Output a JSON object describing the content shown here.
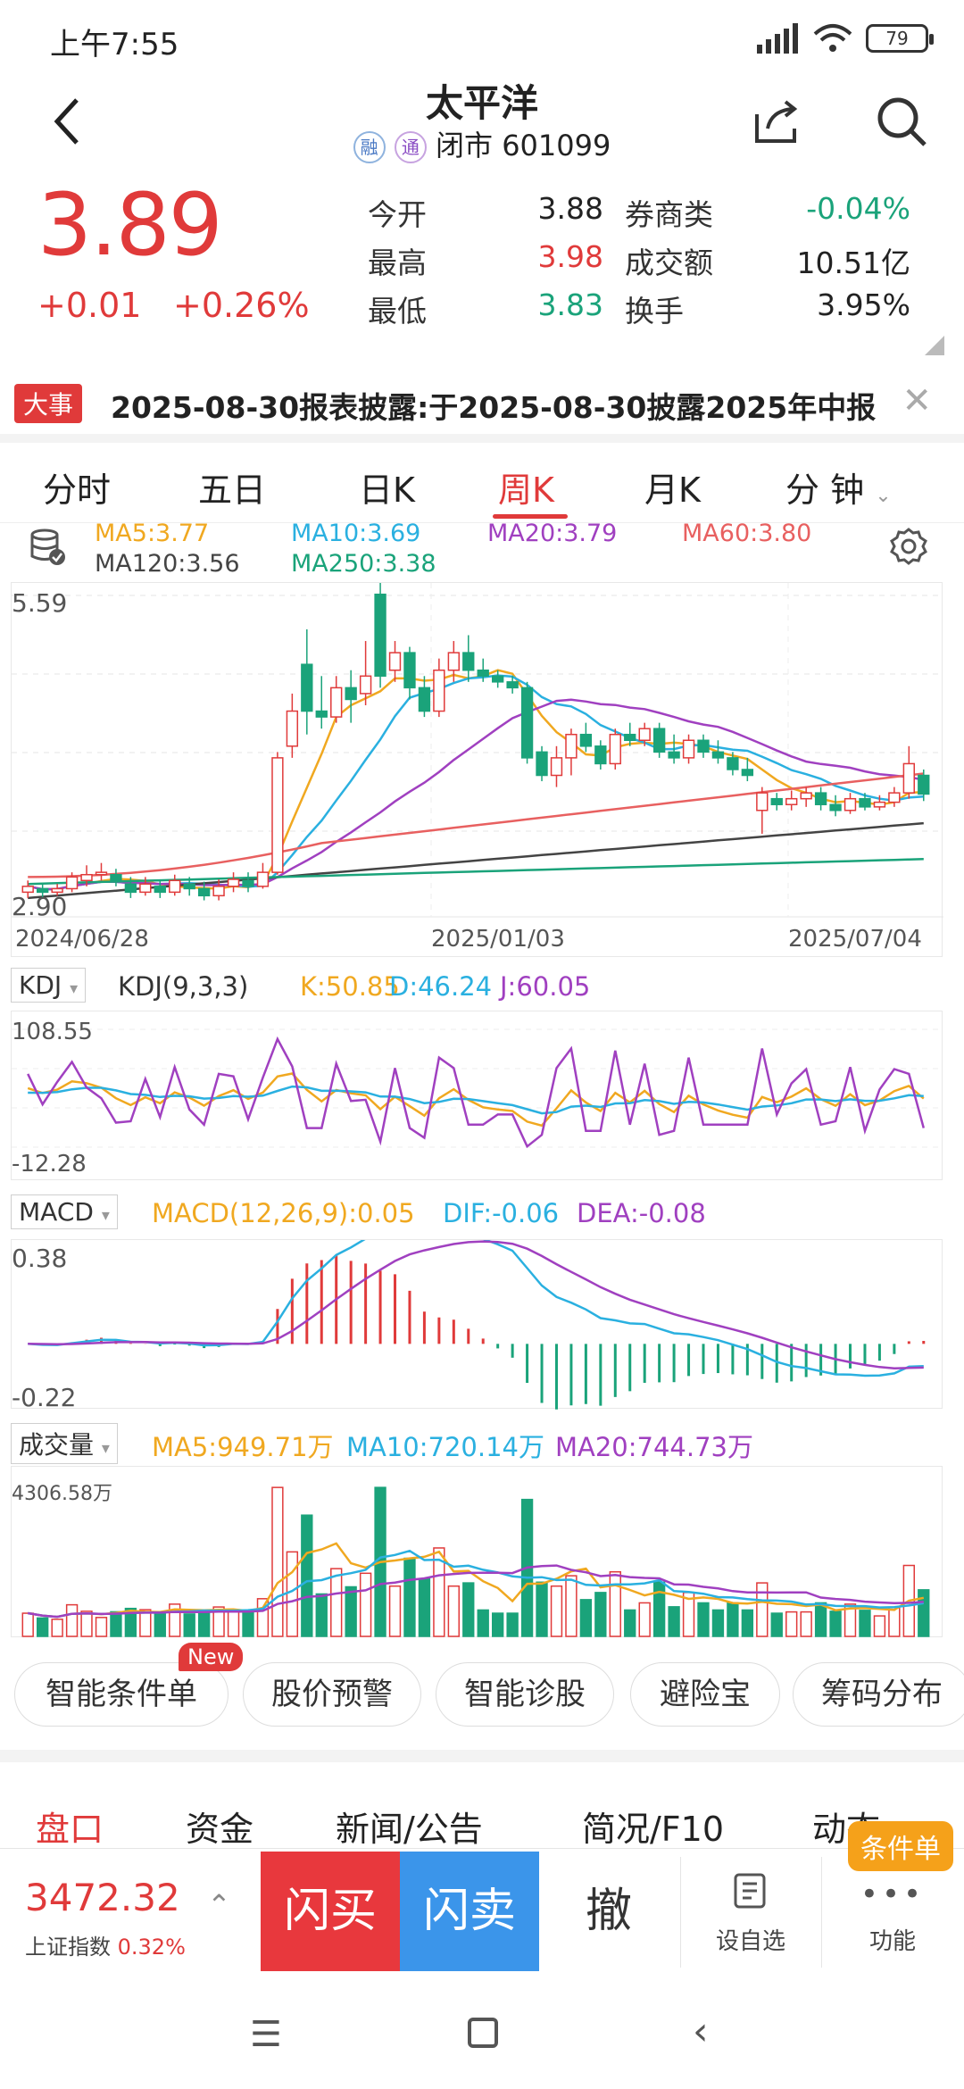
{
  "status_bar": {
    "time": "上午7:55",
    "battery": "79"
  },
  "header": {
    "title": "太平洋",
    "badge1": "融",
    "badge2": "通",
    "status": "闭市",
    "code": "601099"
  },
  "price": {
    "last": "3.89",
    "change": "+0.01",
    "change_pct": "+0.26%"
  },
  "quotes": [
    {
      "label": "今开",
      "value": "3.88",
      "color": "#222222"
    },
    {
      "label": "券商类",
      "value": "-0.04%",
      "color": "#1aa37a"
    },
    {
      "label": "最高",
      "value": "3.98",
      "color": "#e03a3a"
    },
    {
      "label": "成交额",
      "value": "10.51亿",
      "color": "#222222"
    },
    {
      "label": "最低",
      "value": "3.83",
      "color": "#1aa37a"
    },
    {
      "label": "换手",
      "value": "3.95%",
      "color": "#222222"
    }
  ],
  "event": {
    "tag": "大事",
    "text": "2025-08-30报表披露:于2025-08-30披露2025年中报"
  },
  "period_tabs": [
    "分时",
    "五日",
    "日K",
    "周K",
    "月K",
    "分 钟"
  ],
  "active_tab": "周K",
  "ma": {
    "ma5": "MA5:3.77",
    "ma10": "MA10:3.69",
    "ma20": "MA20:3.79",
    "ma60": "MA60:3.80",
    "ma120": "MA120:3.56",
    "ma250": "MA250:3.38"
  },
  "kline_axis": {
    "top": "5.59",
    "bottom": "2.90",
    "dates": [
      "2024/06/28",
      "2025/01/03",
      "2025/07/04"
    ]
  },
  "kdj": {
    "selector": "KDJ",
    "name": "KDJ(9,3,3)",
    "k": "K:50.85",
    "d": "D:46.24",
    "j": "J:60.05",
    "top": "108.55",
    "bottom": "-12.28"
  },
  "macd": {
    "selector": "MACD",
    "name": "MACD(12,26,9):0.05",
    "dif": "DIF:-0.06",
    "dea": "DEA:-0.08",
    "top": "0.38",
    "bottom": "-0.22"
  },
  "volume": {
    "selector": "成交量",
    "ma5": "MA5:949.71万",
    "ma10": "MA10:720.14万",
    "ma20": "MA20:744.73万",
    "top": "4306.58万"
  },
  "tools": [
    "智能条件单",
    "股价预警",
    "智能诊股",
    "避险宝",
    "筹码分布"
  ],
  "tools_new": "New",
  "section_tabs": [
    "盘口",
    "资金",
    "新闻/公告",
    "简况/F10",
    "动态"
  ],
  "bottom": {
    "index_value": "3472.32",
    "index_name": "上证指数",
    "index_pct": "0.32%",
    "buy": "闪买",
    "sell": "闪卖",
    "cancel": "撤",
    "watch": "设自选",
    "more": "功能",
    "cond_badge": "条件单"
  },
  "colors": {
    "up": "#e03a3a",
    "down": "#1aa37a",
    "ma5": "#f0a820",
    "ma10": "#2ab0e0",
    "ma20": "#a040c0",
    "ma60": "#e86060",
    "ma120": "#444444",
    "ma250": "#1aa37a"
  },
  "chart_data": [
    {
      "type": "candlestick",
      "title": "周K",
      "ylim": [
        2.9,
        5.59
      ],
      "x_ticks": [
        "2024/06/28",
        "2025/01/03",
        "2025/07/04"
      ],
      "series": [
        {
          "name": "MA5",
          "value": 3.77
        },
        {
          "name": "MA10",
          "value": 3.69
        },
        {
          "name": "MA20",
          "value": 3.79
        },
        {
          "name": "MA60",
          "value": 3.8
        },
        {
          "name": "MA120",
          "value": 3.56
        },
        {
          "name": "MA250",
          "value": 3.38
        }
      ],
      "candles": [
        [
          3.05,
          3.1,
          3.15,
          3.0
        ],
        [
          3.08,
          3.05,
          3.12,
          3.0
        ],
        [
          3.05,
          3.08,
          3.12,
          3.02
        ],
        [
          3.08,
          3.18,
          3.22,
          3.05
        ],
        [
          3.15,
          3.2,
          3.28,
          3.1
        ],
        [
          3.2,
          3.22,
          3.3,
          3.15
        ],
        [
          3.2,
          3.14,
          3.25,
          3.1
        ],
        [
          3.12,
          3.05,
          3.18,
          3.0
        ],
        [
          3.05,
          3.12,
          3.18,
          3.02
        ],
        [
          3.1,
          3.05,
          3.16,
          3.0
        ],
        [
          3.05,
          3.15,
          3.2,
          3.02
        ],
        [
          3.12,
          3.08,
          3.18,
          3.02
        ],
        [
          3.08,
          3.02,
          3.14,
          2.98
        ],
        [
          3.02,
          3.1,
          3.16,
          2.98
        ],
        [
          3.1,
          3.16,
          3.22,
          3.05
        ],
        [
          3.15,
          3.1,
          3.22,
          3.05
        ],
        [
          3.1,
          3.22,
          3.3,
          3.08
        ],
        [
          3.22,
          4.2,
          4.25,
          3.2
        ],
        [
          4.3,
          4.6,
          4.75,
          4.2
        ],
        [
          5.0,
          4.6,
          5.3,
          4.4
        ],
        [
          4.6,
          4.55,
          4.9,
          4.45
        ],
        [
          4.55,
          4.8,
          4.9,
          4.5
        ],
        [
          4.8,
          4.7,
          4.95,
          4.5
        ],
        [
          4.75,
          4.9,
          5.2,
          4.65
        ],
        [
          5.6,
          4.9,
          5.7,
          4.8
        ],
        [
          4.95,
          5.1,
          5.2,
          4.85
        ],
        [
          5.1,
          4.8,
          5.15,
          4.7
        ],
        [
          4.8,
          4.6,
          4.9,
          4.55
        ],
        [
          4.6,
          4.95,
          5.05,
          4.55
        ],
        [
          4.95,
          5.1,
          5.2,
          4.85
        ],
        [
          5.1,
          4.95,
          5.25,
          4.85
        ],
        [
          4.95,
          4.9,
          5.05,
          4.85
        ],
        [
          4.9,
          4.85,
          4.95,
          4.8
        ],
        [
          4.85,
          4.8,
          4.9,
          4.75
        ],
        [
          4.8,
          4.2,
          4.85,
          4.15
        ],
        [
          4.25,
          4.05,
          4.3,
          4.0
        ],
        [
          4.05,
          4.2,
          4.3,
          3.95
        ],
        [
          4.2,
          4.4,
          4.45,
          4.05
        ],
        [
          4.4,
          4.3,
          4.5,
          4.25
        ],
        [
          4.3,
          4.15,
          4.35,
          4.1
        ],
        [
          4.15,
          4.4,
          4.45,
          4.1
        ],
        [
          4.4,
          4.35,
          4.5,
          4.3
        ],
        [
          4.35,
          4.45,
          4.5,
          4.3
        ],
        [
          4.45,
          4.25,
          4.5,
          4.2
        ],
        [
          4.25,
          4.2,
          4.4,
          4.15
        ],
        [
          4.2,
          4.35,
          4.4,
          4.15
        ],
        [
          4.35,
          4.25,
          4.4,
          4.2
        ],
        [
          4.25,
          4.2,
          4.35,
          4.15
        ],
        [
          4.2,
          4.1,
          4.25,
          4.05
        ],
        [
          4.1,
          4.05,
          4.2,
          4.0
        ],
        [
          3.75,
          3.9,
          3.95,
          3.55
        ],
        [
          3.85,
          3.8,
          3.9,
          3.75
        ],
        [
          3.8,
          3.85,
          3.92,
          3.75
        ],
        [
          3.85,
          3.9,
          3.95,
          3.78
        ],
        [
          3.9,
          3.8,
          3.95,
          3.75
        ],
        [
          3.8,
          3.75,
          3.88,
          3.7
        ],
        [
          3.75,
          3.85,
          3.9,
          3.72
        ],
        [
          3.85,
          3.78,
          3.9,
          3.75
        ],
        [
          3.78,
          3.82,
          3.88,
          3.75
        ],
        [
          3.82,
          3.9,
          3.95,
          3.78
        ],
        [
          3.9,
          4.15,
          4.3,
          3.85
        ],
        [
          4.05,
          3.89,
          4.1,
          3.83
        ]
      ]
    },
    {
      "type": "line",
      "title": "KDJ(9,3,3)",
      "ylim": [
        -12.28,
        108.55
      ],
      "series": [
        {
          "name": "K",
          "value": 50.85
        },
        {
          "name": "D",
          "value": 46.24
        },
        {
          "name": "J",
          "value": 60.05
        }
      ]
    },
    {
      "type": "bar",
      "title": "MACD(12,26,9)",
      "ylim": [
        -0.22,
        0.38
      ],
      "series": [
        {
          "name": "MACD",
          "value": 0.05
        },
        {
          "name": "DIF",
          "value": -0.06
        },
        {
          "name": "DEA",
          "value": -0.08
        }
      ]
    },
    {
      "type": "bar",
      "title": "成交量",
      "ylim": [
        0,
        4306.58
      ],
      "series": [
        {
          "name": "MA5",
          "value": 949.71
        },
        {
          "name": "MA10",
          "value": 720.14
        },
        {
          "name": "MA20",
          "value": 744.73
        }
      ]
    }
  ]
}
